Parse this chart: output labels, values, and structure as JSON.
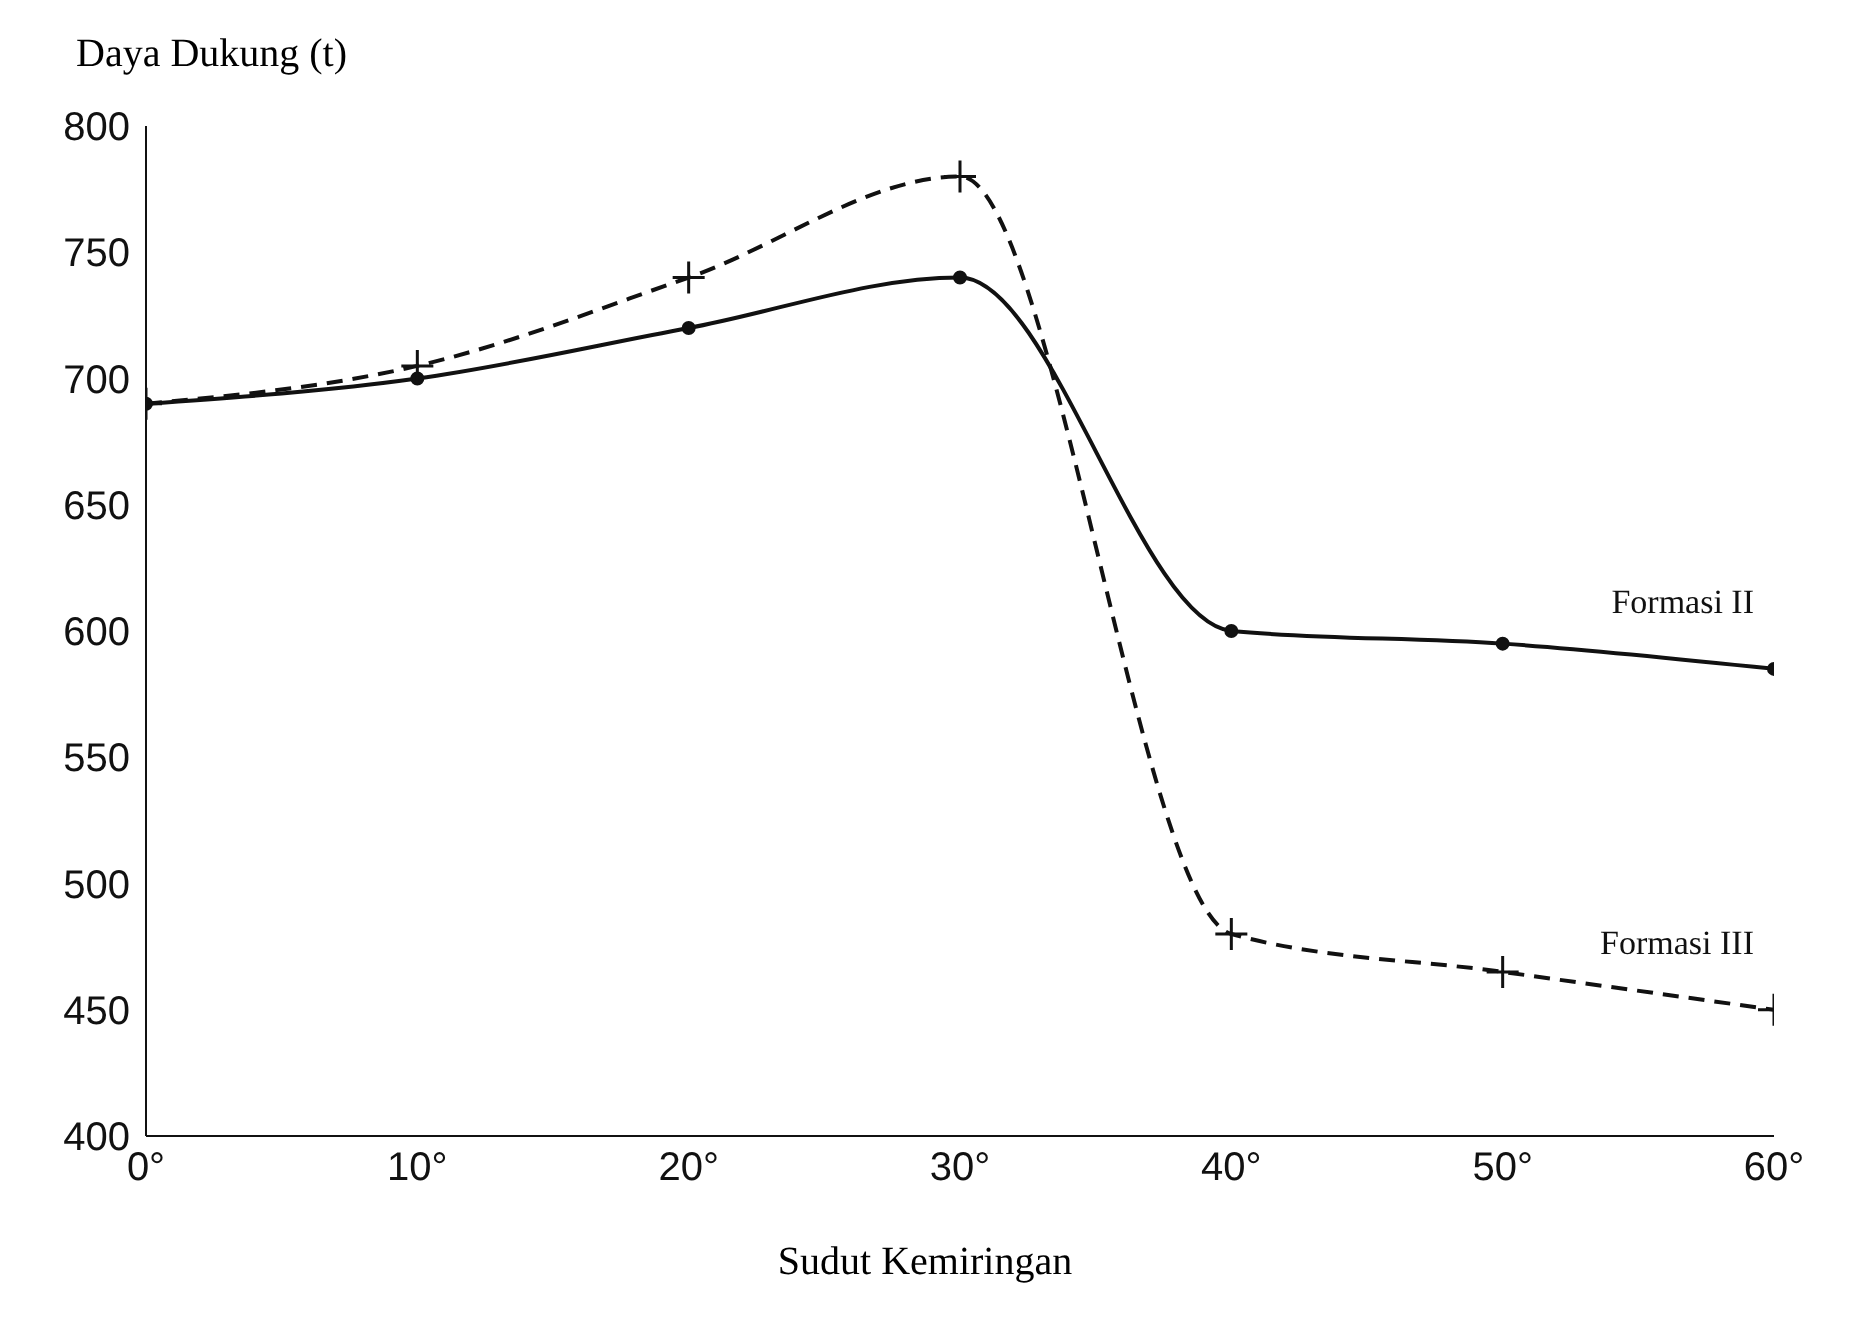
{
  "chart_data": {
    "type": "line",
    "xlabel": "Sudut Kemiringan",
    "ylabel": "Daya Dukung (t)",
    "x": [
      0,
      10,
      20,
      30,
      40,
      50,
      60
    ],
    "series": [
      {
        "name": "Formasi II",
        "color": "#111111",
        "values": [
          690,
          700,
          720,
          740,
          600,
          595,
          585
        ],
        "marker": "circle",
        "line_style": "solid"
      },
      {
        "name": "Formasi III",
        "color": "#111111",
        "values": [
          690,
          705,
          740,
          780,
          480,
          465,
          450
        ],
        "marker": "cross",
        "line_style": "dashed"
      }
    ],
    "xlim": [
      0,
      60
    ],
    "xticks": [
      {
        "value": 0,
        "label": "0°"
      },
      {
        "value": 10,
        "label": "10°"
      },
      {
        "value": 20,
        "label": "20°"
      },
      {
        "value": 30,
        "label": "30°"
      },
      {
        "value": 40,
        "label": "40°"
      },
      {
        "value": 50,
        "label": "50°"
      },
      {
        "value": 60,
        "label": "60°"
      }
    ],
    "ylim": [
      400,
      800
    ],
    "yticks": [
      400,
      450,
      500,
      550,
      600,
      650,
      700,
      750,
      800
    ],
    "grid": false,
    "legend": false
  }
}
